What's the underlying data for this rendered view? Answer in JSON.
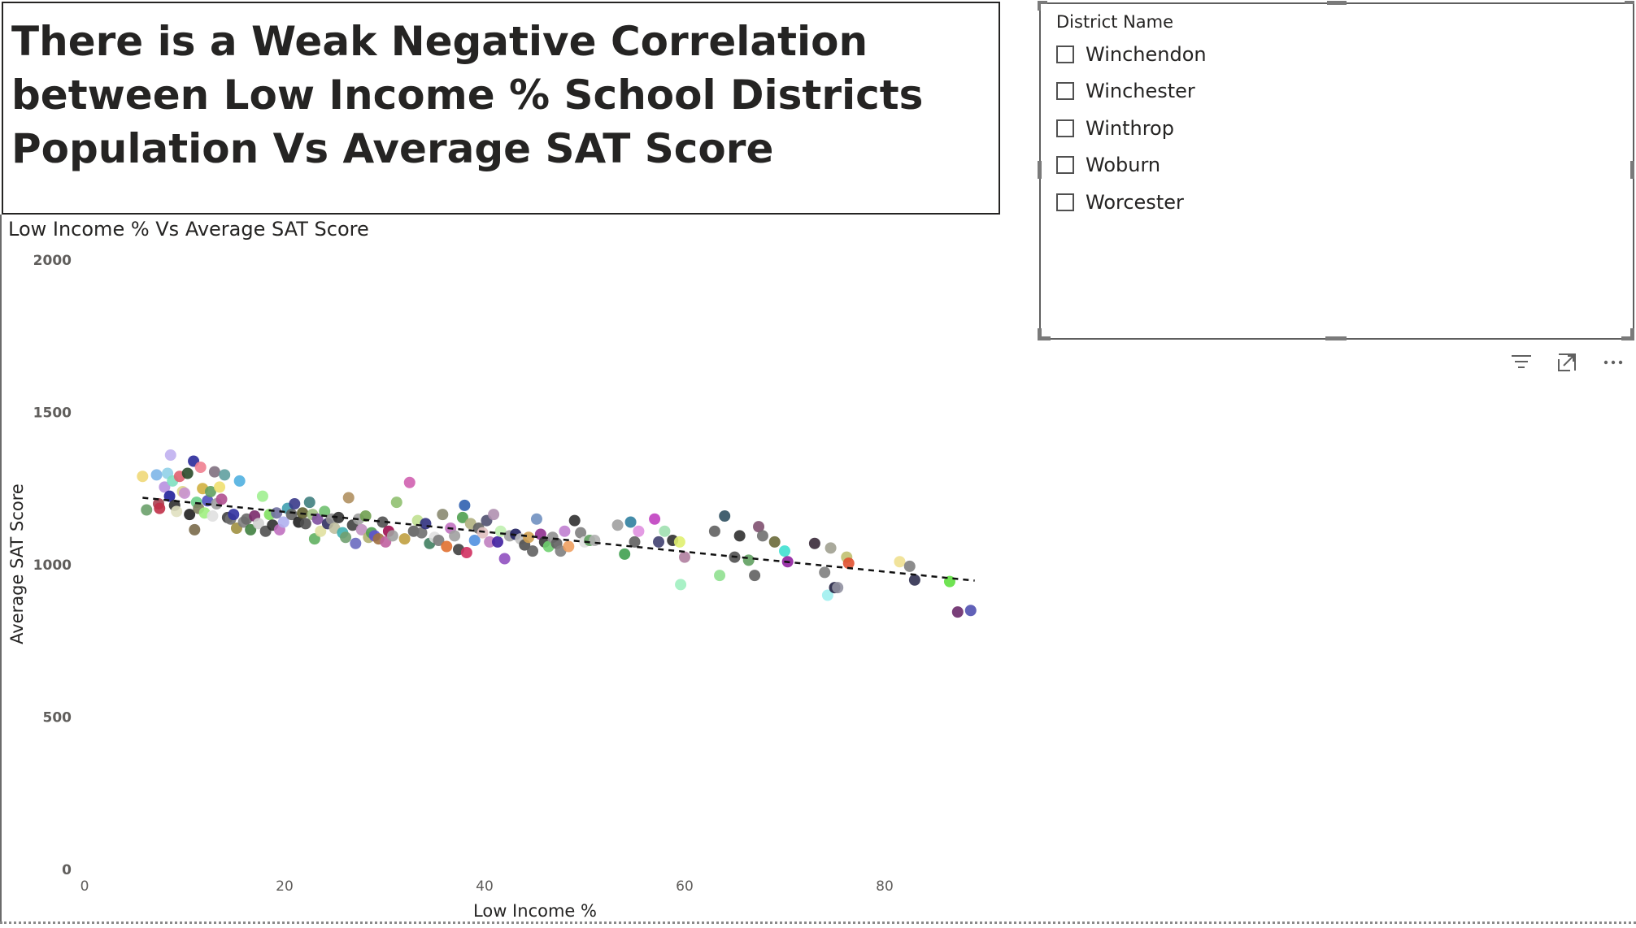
{
  "title_card": {
    "text": "There is a Weak Negative Correlation between Low Income % School Districts Population Vs Average SAT Score"
  },
  "slicer": {
    "header": "District Name",
    "items": [
      {
        "label": "Winchendon",
        "checked": false
      },
      {
        "label": "Winchester",
        "checked": false
      },
      {
        "label": "Winthrop",
        "checked": false
      },
      {
        "label": "Woburn",
        "checked": false
      },
      {
        "label": "Worcester",
        "checked": false
      }
    ]
  },
  "visual_header": {
    "icons": [
      "filter-icon",
      "focus-mode-icon",
      "more-options-icon"
    ]
  },
  "chart_data": {
    "type": "scatter",
    "title": "Low Income % Vs Average SAT Score",
    "xlabel": "Low Income %",
    "ylabel": "Average SAT Score",
    "xlim": [
      0,
      89
    ],
    "ylim": [
      0,
      2000
    ],
    "x_ticks": [
      0,
      20,
      40,
      60,
      80
    ],
    "y_ticks": [
      0,
      500,
      1000,
      1500,
      2000
    ],
    "trendline": {
      "style": "dashed",
      "color": "#252423",
      "x": [
        5.8,
        89.0
      ],
      "y": [
        1220,
        948
      ]
    },
    "grid": false,
    "legend": "none",
    "points": [
      {
        "x": 5.8,
        "y": 1290,
        "c": "#f0d878"
      },
      {
        "x": 6.2,
        "y": 1180,
        "c": "#6aa06a"
      },
      {
        "x": 7.2,
        "y": 1295,
        "c": "#7eb6e8"
      },
      {
        "x": 7.4,
        "y": 1200,
        "c": "#a84050"
      },
      {
        "x": 7.5,
        "y": 1185,
        "c": "#c03048"
      },
      {
        "x": 8.0,
        "y": 1255,
        "c": "#b890e0"
      },
      {
        "x": 8.3,
        "y": 1300,
        "c": "#90d0e8"
      },
      {
        "x": 8.5,
        "y": 1225,
        "c": "#20209a"
      },
      {
        "x": 8.6,
        "y": 1360,
        "c": "#c0b0f0"
      },
      {
        "x": 8.8,
        "y": 1275,
        "c": "#80e0c0"
      },
      {
        "x": 9.0,
        "y": 1195,
        "c": "#303030"
      },
      {
        "x": 9.2,
        "y": 1175,
        "c": "#e0e0c0"
      },
      {
        "x": 9.5,
        "y": 1290,
        "c": "#e06070"
      },
      {
        "x": 9.8,
        "y": 1240,
        "c": "#ddd88a"
      },
      {
        "x": 10.0,
        "y": 1235,
        "c": "#c890d0"
      },
      {
        "x": 10.3,
        "y": 1300,
        "c": "#2a4a2a"
      },
      {
        "x": 10.5,
        "y": 1165,
        "c": "#202020"
      },
      {
        "x": 10.9,
        "y": 1340,
        "c": "#2a2a9a"
      },
      {
        "x": 11.0,
        "y": 1115,
        "c": "#7a6a4a"
      },
      {
        "x": 11.2,
        "y": 1205,
        "c": "#6ad08a"
      },
      {
        "x": 11.4,
        "y": 1185,
        "c": "#808060"
      },
      {
        "x": 11.6,
        "y": 1320,
        "c": "#f08090"
      },
      {
        "x": 11.8,
        "y": 1250,
        "c": "#d0b040"
      },
      {
        "x": 12.0,
        "y": 1170,
        "c": "#a0f080"
      },
      {
        "x": 12.3,
        "y": 1210,
        "c": "#5050c0"
      },
      {
        "x": 12.6,
        "y": 1240,
        "c": "#60a060"
      },
      {
        "x": 12.8,
        "y": 1160,
        "c": "#e0e0e0"
      },
      {
        "x": 13.0,
        "y": 1305,
        "c": "#807080"
      },
      {
        "x": 13.2,
        "y": 1200,
        "c": "#a0a0a0"
      },
      {
        "x": 13.5,
        "y": 1255,
        "c": "#f0e070"
      },
      {
        "x": 13.7,
        "y": 1215,
        "c": "#b05090"
      },
      {
        "x": 14.0,
        "y": 1295,
        "c": "#60a0a0"
      },
      {
        "x": 14.3,
        "y": 1155,
        "c": "#404040"
      },
      {
        "x": 14.6,
        "y": 1150,
        "c": "#707070"
      },
      {
        "x": 14.9,
        "y": 1165,
        "c": "#3030a0"
      },
      {
        "x": 15.2,
        "y": 1120,
        "c": "#a09040"
      },
      {
        "x": 15.5,
        "y": 1275,
        "c": "#50b0e0"
      },
      {
        "x": 15.9,
        "y": 1140,
        "c": "#808080"
      },
      {
        "x": 16.2,
        "y": 1150,
        "c": "#6a6a6a"
      },
      {
        "x": 16.6,
        "y": 1115,
        "c": "#408040"
      },
      {
        "x": 17.0,
        "y": 1160,
        "c": "#7a2a6a"
      },
      {
        "x": 17.4,
        "y": 1135,
        "c": "#d0d0d0"
      },
      {
        "x": 17.8,
        "y": 1225,
        "c": "#a0f090"
      },
      {
        "x": 18.1,
        "y": 1110,
        "c": "#505050"
      },
      {
        "x": 18.5,
        "y": 1165,
        "c": "#80e060"
      },
      {
        "x": 18.8,
        "y": 1130,
        "c": "#303030"
      },
      {
        "x": 19.2,
        "y": 1170,
        "c": "#7070a0"
      },
      {
        "x": 19.5,
        "y": 1115,
        "c": "#c070c0"
      },
      {
        "x": 19.9,
        "y": 1140,
        "c": "#b0b0f0"
      },
      {
        "x": 20.3,
        "y": 1185,
        "c": "#40a0b0"
      },
      {
        "x": 20.7,
        "y": 1165,
        "c": "#606060"
      },
      {
        "x": 21.0,
        "y": 1200,
        "c": "#3a3a8a"
      },
      {
        "x": 21.4,
        "y": 1140,
        "c": "#202020"
      },
      {
        "x": 21.8,
        "y": 1170,
        "c": "#606030"
      },
      {
        "x": 22.1,
        "y": 1135,
        "c": "#505050"
      },
      {
        "x": 22.5,
        "y": 1205,
        "c": "#408080"
      },
      {
        "x": 22.8,
        "y": 1165,
        "c": "#a0c080"
      },
      {
        "x": 23.0,
        "y": 1085,
        "c": "#60b060"
      },
      {
        "x": 23.3,
        "y": 1150,
        "c": "#8050a0"
      },
      {
        "x": 23.6,
        "y": 1110,
        "c": "#e0e0a0"
      },
      {
        "x": 24.0,
        "y": 1175,
        "c": "#70c070"
      },
      {
        "x": 24.3,
        "y": 1135,
        "c": "#303060"
      },
      {
        "x": 24.7,
        "y": 1150,
        "c": "#909090"
      },
      {
        "x": 25.0,
        "y": 1120,
        "c": "#c0c0a0"
      },
      {
        "x": 25.4,
        "y": 1155,
        "c": "#303030"
      },
      {
        "x": 25.8,
        "y": 1105,
        "c": "#40b0b0"
      },
      {
        "x": 26.1,
        "y": 1090,
        "c": "#70a070"
      },
      {
        "x": 26.4,
        "y": 1220,
        "c": "#b09060"
      },
      {
        "x": 26.8,
        "y": 1130,
        "c": "#404040"
      },
      {
        "x": 27.1,
        "y": 1070,
        "c": "#6a6ac0"
      },
      {
        "x": 27.4,
        "y": 1150,
        "c": "#a0a0a0"
      },
      {
        "x": 27.7,
        "y": 1115,
        "c": "#c090c0"
      },
      {
        "x": 28.1,
        "y": 1160,
        "c": "#70a050"
      },
      {
        "x": 28.4,
        "y": 1090,
        "c": "#b0b070"
      },
      {
        "x": 28.7,
        "y": 1105,
        "c": "#50a050"
      },
      {
        "x": 29.0,
        "y": 1095,
        "c": "#6050d0"
      },
      {
        "x": 29.4,
        "y": 1085,
        "c": "#a07040"
      },
      {
        "x": 29.8,
        "y": 1140,
        "c": "#505050"
      },
      {
        "x": 30.1,
        "y": 1075,
        "c": "#c060a0"
      },
      {
        "x": 30.4,
        "y": 1110,
        "c": "#a01050"
      },
      {
        "x": 30.8,
        "y": 1095,
        "c": "#a0a0a0"
      },
      {
        "x": 31.2,
        "y": 1205,
        "c": "#90c070"
      },
      {
        "x": 32.0,
        "y": 1085,
        "c": "#c0a040"
      },
      {
        "x": 32.5,
        "y": 1270,
        "c": "#d060b0"
      },
      {
        "x": 32.9,
        "y": 1110,
        "c": "#606060"
      },
      {
        "x": 33.3,
        "y": 1145,
        "c": "#c0e090"
      },
      {
        "x": 33.7,
        "y": 1105,
        "c": "#707070"
      },
      {
        "x": 34.1,
        "y": 1135,
        "c": "#303080"
      },
      {
        "x": 34.5,
        "y": 1070,
        "c": "#408060"
      },
      {
        "x": 35.0,
        "y": 1090,
        "c": "#e0e0e0"
      },
      {
        "x": 35.4,
        "y": 1080,
        "c": "#7a7a7a"
      },
      {
        "x": 35.8,
        "y": 1165,
        "c": "#8a8a70"
      },
      {
        "x": 36.2,
        "y": 1060,
        "c": "#e07030"
      },
      {
        "x": 36.6,
        "y": 1120,
        "c": "#c070c0"
      },
      {
        "x": 37.0,
        "y": 1095,
        "c": "#a0a0a0"
      },
      {
        "x": 37.4,
        "y": 1050,
        "c": "#404040"
      },
      {
        "x": 37.8,
        "y": 1155,
        "c": "#50a050"
      },
      {
        "x": 38.0,
        "y": 1195,
        "c": "#3060b0"
      },
      {
        "x": 38.2,
        "y": 1040,
        "c": "#d03060"
      },
      {
        "x": 38.6,
        "y": 1135,
        "c": "#b0b080"
      },
      {
        "x": 39.0,
        "y": 1080,
        "c": "#5090e0"
      },
      {
        "x": 39.4,
        "y": 1120,
        "c": "#606060"
      },
      {
        "x": 39.8,
        "y": 1105,
        "c": "#e0c0c0"
      },
      {
        "x": 40.2,
        "y": 1145,
        "c": "#505070"
      },
      {
        "x": 40.5,
        "y": 1075,
        "c": "#c080c0"
      },
      {
        "x": 40.9,
        "y": 1165,
        "c": "#b090b0"
      },
      {
        "x": 41.3,
        "y": 1075,
        "c": "#4020a0"
      },
      {
        "x": 41.6,
        "y": 1110,
        "c": "#c0f0b0"
      },
      {
        "x": 42.0,
        "y": 1020,
        "c": "#9050c0"
      },
      {
        "x": 42.5,
        "y": 1095,
        "c": "#a0a0a0"
      },
      {
        "x": 43.1,
        "y": 1100,
        "c": "#202060"
      },
      {
        "x": 43.6,
        "y": 1085,
        "c": "#c0c0c0"
      },
      {
        "x": 44.0,
        "y": 1065,
        "c": "#505050"
      },
      {
        "x": 44.4,
        "y": 1090,
        "c": "#d0a050"
      },
      {
        "x": 44.8,
        "y": 1045,
        "c": "#606060"
      },
      {
        "x": 45.2,
        "y": 1150,
        "c": "#7090c0"
      },
      {
        "x": 45.6,
        "y": 1100,
        "c": "#903090"
      },
      {
        "x": 46.0,
        "y": 1075,
        "c": "#3a3a3a"
      },
      {
        "x": 46.4,
        "y": 1060,
        "c": "#70d070"
      },
      {
        "x": 46.8,
        "y": 1090,
        "c": "#909090"
      },
      {
        "x": 47.2,
        "y": 1070,
        "c": "#606060"
      },
      {
        "x": 47.6,
        "y": 1045,
        "c": "#808080"
      },
      {
        "x": 48.0,
        "y": 1110,
        "c": "#c080d0"
      },
      {
        "x": 48.4,
        "y": 1060,
        "c": "#f0a060"
      },
      {
        "x": 49.0,
        "y": 1145,
        "c": "#303030"
      },
      {
        "x": 49.6,
        "y": 1105,
        "c": "#808080"
      },
      {
        "x": 50.0,
        "y": 1075,
        "c": "#e0e0e0"
      },
      {
        "x": 50.5,
        "y": 1080,
        "c": "#60a060"
      },
      {
        "x": 51.0,
        "y": 1080,
        "c": "#b0b0b0"
      },
      {
        "x": 53.3,
        "y": 1130,
        "c": "#a0a0a0"
      },
      {
        "x": 54.0,
        "y": 1035,
        "c": "#40a050"
      },
      {
        "x": 54.6,
        "y": 1140,
        "c": "#3080a0"
      },
      {
        "x": 55.0,
        "y": 1075,
        "c": "#606060"
      },
      {
        "x": 55.4,
        "y": 1110,
        "c": "#e090e0"
      },
      {
        "x": 57.0,
        "y": 1150,
        "c": "#c040c0"
      },
      {
        "x": 57.4,
        "y": 1075,
        "c": "#404070"
      },
      {
        "x": 58.0,
        "y": 1110,
        "c": "#a0e0b0"
      },
      {
        "x": 58.8,
        "y": 1080,
        "c": "#303030"
      },
      {
        "x": 59.5,
        "y": 1075,
        "c": "#e0f070"
      },
      {
        "x": 59.6,
        "y": 935,
        "c": "#a0f0c0"
      },
      {
        "x": 60.0,
        "y": 1025,
        "c": "#b080a0"
      },
      {
        "x": 63.0,
        "y": 1110,
        "c": "#606060"
      },
      {
        "x": 63.5,
        "y": 965,
        "c": "#90e090"
      },
      {
        "x": 64.0,
        "y": 1160,
        "c": "#305060"
      },
      {
        "x": 65.0,
        "y": 1025,
        "c": "#505050"
      },
      {
        "x": 65.5,
        "y": 1095,
        "c": "#303030"
      },
      {
        "x": 66.4,
        "y": 1015,
        "c": "#60a060"
      },
      {
        "x": 67.0,
        "y": 965,
        "c": "#606060"
      },
      {
        "x": 67.4,
        "y": 1125,
        "c": "#805070"
      },
      {
        "x": 67.8,
        "y": 1095,
        "c": "#707070"
      },
      {
        "x": 69.0,
        "y": 1075,
        "c": "#6a6a3a"
      },
      {
        "x": 70.0,
        "y": 1045,
        "c": "#40e0d0"
      },
      {
        "x": 70.3,
        "y": 1010,
        "c": "#9020a0"
      },
      {
        "x": 73.0,
        "y": 1070,
        "c": "#3a2a3a"
      },
      {
        "x": 74.0,
        "y": 975,
        "c": "#808080"
      },
      {
        "x": 74.3,
        "y": 900,
        "c": "#a0f0f0"
      },
      {
        "x": 74.6,
        "y": 1055,
        "c": "#a0a090"
      },
      {
        "x": 75.0,
        "y": 925,
        "c": "#202040"
      },
      {
        "x": 75.3,
        "y": 925,
        "c": "#9090a0"
      },
      {
        "x": 76.2,
        "y": 1025,
        "c": "#c0c070"
      },
      {
        "x": 76.4,
        "y": 1005,
        "c": "#e05030"
      },
      {
        "x": 81.5,
        "y": 1010,
        "c": "#f0e090"
      },
      {
        "x": 82.5,
        "y": 995,
        "c": "#808080"
      },
      {
        "x": 83.0,
        "y": 950,
        "c": "#303050"
      },
      {
        "x": 86.5,
        "y": 945,
        "c": "#60e040"
      },
      {
        "x": 87.3,
        "y": 845,
        "c": "#6a2a6a"
      },
      {
        "x": 88.6,
        "y": 850,
        "c": "#5050b0"
      }
    ]
  }
}
